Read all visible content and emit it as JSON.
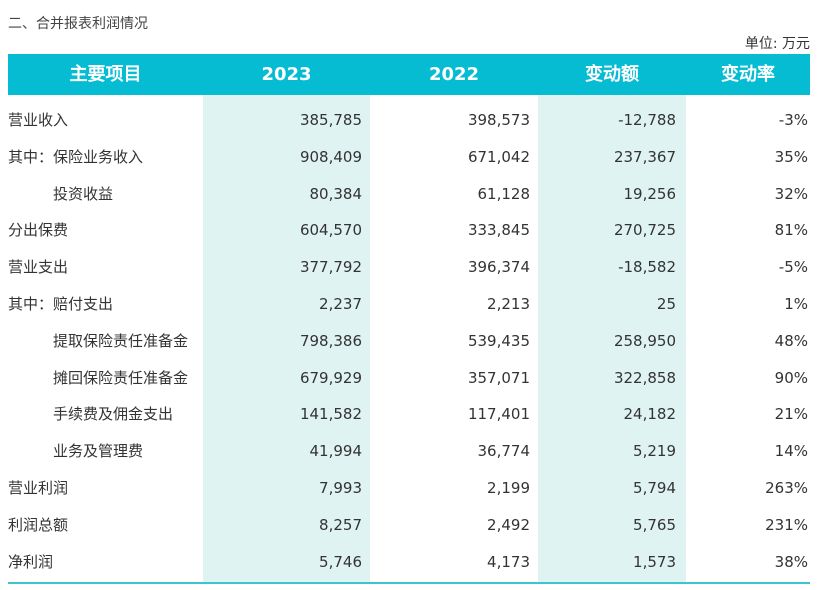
{
  "title": "二、合并报表利润情况",
  "unit": "单位: 万元",
  "header": [
    "主要项目",
    "2023",
    "2022",
    "变动额",
    "变动率"
  ],
  "rows": [
    {
      "label": "营业收入",
      "indent": false,
      "v2023": "385,785",
      "v2022": "398,573",
      "change": "-12,788",
      "rate": "-3%"
    },
    {
      "label": "其中：保险业务收入",
      "indent": false,
      "v2023": "908,409",
      "v2022": "671,042",
      "change": "237,367",
      "rate": "35%"
    },
    {
      "label": "投资收益",
      "indent": true,
      "v2023": "80,384",
      "v2022": "61,128",
      "change": "19,256",
      "rate": "32%"
    },
    {
      "label": "分出保费",
      "indent": false,
      "v2023": "604,570",
      "v2022": "333,845",
      "change": "270,725",
      "rate": "81%"
    },
    {
      "label": "营业支出",
      "indent": false,
      "v2023": "377,792",
      "v2022": "396,374",
      "change": "-18,582",
      "rate": "-5%"
    },
    {
      "label": "其中：赔付支出",
      "indent": false,
      "v2023": "2,237",
      "v2022": "2,213",
      "change": "25",
      "rate": "1%"
    },
    {
      "label": "提取保险责任准备金",
      "indent": true,
      "v2023": "798,386",
      "v2022": "539,435",
      "change": "258,950",
      "rate": "48%"
    },
    {
      "label": "摊回保险责任准备金",
      "indent": true,
      "v2023": "679,929",
      "v2022": "357,071",
      "change": "322,858",
      "rate": "90%"
    },
    {
      "label": "手续费及佣金支出",
      "indent": true,
      "v2023": "141,582",
      "v2022": "117,401",
      "change": "24,182",
      "rate": "21%"
    },
    {
      "label": "业务及管理费",
      "indent": true,
      "v2023": "41,994",
      "v2022": "36,774",
      "change": "5,219",
      "rate": "14%"
    },
    {
      "label": "营业利润",
      "indent": false,
      "v2023": "7,993",
      "v2022": "2,199",
      "change": "5,794",
      "rate": "263%"
    },
    {
      "label": "利润总额",
      "indent": false,
      "v2023": "8,257",
      "v2022": "2,492",
      "change": "5,765",
      "rate": "231%"
    },
    {
      "label": "净利润",
      "indent": false,
      "v2023": "5,746",
      "v2022": "4,173",
      "change": "1,573",
      "rate": "38%"
    }
  ],
  "colors": {
    "header": "#05bcd3",
    "shade": "#e0f3f3"
  }
}
